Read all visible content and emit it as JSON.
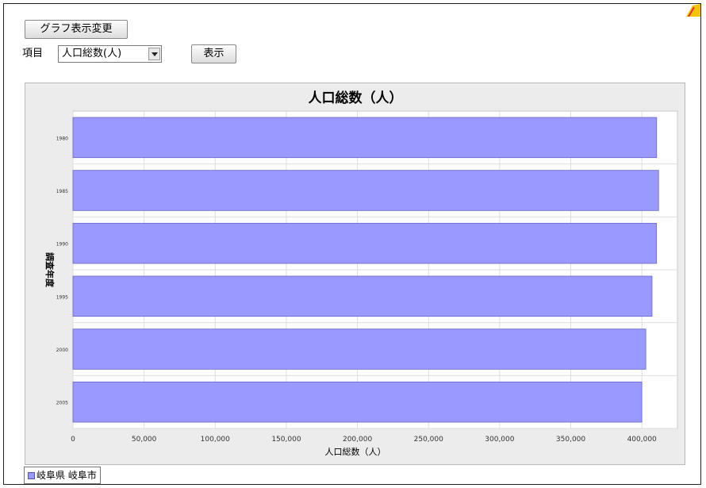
{
  "toolbar": {
    "change_graph_label": "グラフ表示変更",
    "item_label": "項目",
    "item_select_value": "人口総数(人)",
    "show_label": "表示"
  },
  "colors": {
    "bar_fill": "#9999ff",
    "bar_stroke": "#6666cc",
    "plot_bg": "#ffffff",
    "panel_bg": "#ececec",
    "grid": "#dddddd"
  },
  "chart_data": {
    "type": "bar",
    "orientation": "horizontal",
    "title": "人口総数（人）",
    "xlabel": "人口総数（人）",
    "ylabel": "調査年度",
    "categories": [
      "1980",
      "1985",
      "1990",
      "1995",
      "2000",
      "2005"
    ],
    "series": [
      {
        "name": "岐阜県 岐阜市",
        "values": [
          410368,
          411743,
          410324,
          407134,
          402751,
          399931
        ]
      }
    ],
    "xlim": [
      0,
      425000
    ],
    "xticks": [
      0,
      50000,
      100000,
      150000,
      200000,
      250000,
      300000,
      350000,
      400000
    ],
    "xtick_labels": [
      "0",
      "50,000",
      "100,000",
      "150,000",
      "200,000",
      "250,000",
      "300,000",
      "350,000",
      "400,000"
    ],
    "grid": true,
    "legend_position": "bottom-left"
  }
}
